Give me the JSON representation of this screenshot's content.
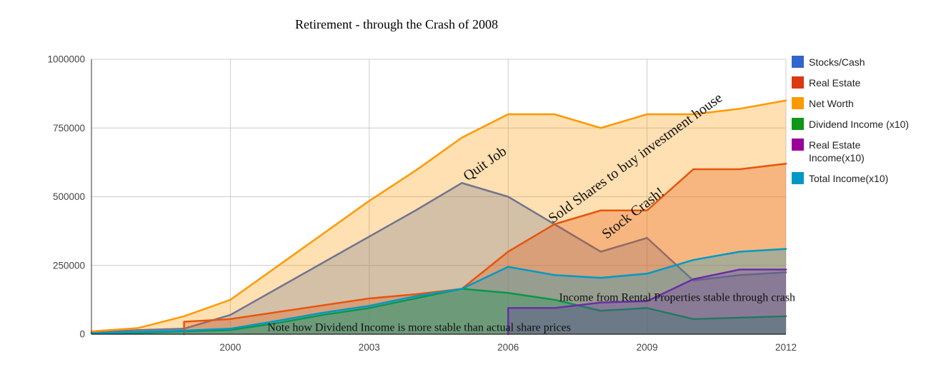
{
  "title": "Retirement - through the Crash of 2008",
  "legend": [
    {
      "label": "Stocks/Cash",
      "color": "#3366CC"
    },
    {
      "label": "Real Estate",
      "color": "#DC3912"
    },
    {
      "label": "Net Worth",
      "color": "#FF9900"
    },
    {
      "label": "Dividend Income (x10)",
      "color": "#109618"
    },
    {
      "label": "Real Estate Income(x10)",
      "lines": [
        "Real Estate",
        "Income(x10)"
      ],
      "color": "#990099"
    },
    {
      "label": "Total Income(x10)",
      "color": "#0099C6"
    }
  ],
  "chart_data": {
    "type": "area",
    "title": "Retirement - through the Crash of 2008",
    "xlabel": "",
    "ylabel": "",
    "x": [
      1997,
      1998,
      1999,
      2000,
      2001,
      2002,
      2003,
      2004,
      2005,
      2006,
      2007,
      2008,
      2009,
      2010,
      2011,
      2012
    ],
    "series": [
      {
        "name": "Stocks/Cash",
        "color": "#3366CC",
        "values": [
          5000,
          15000,
          20000,
          70000,
          165000,
          260000,
          355000,
          450000,
          550000,
          500000,
          400000,
          300000,
          350000,
          195000,
          215000,
          225000
        ]
      },
      {
        "name": "Real Estate",
        "color": "#DC3912",
        "values": [
          null,
          null,
          45000,
          55000,
          80000,
          105000,
          130000,
          145000,
          165000,
          300000,
          400000,
          450000,
          450000,
          600000,
          600000,
          620000
        ]
      },
      {
        "name": "Net Worth",
        "color": "#FF9900",
        "values": [
          10000,
          22000,
          65000,
          125000,
          245000,
          365000,
          485000,
          595000,
          715000,
          800000,
          800000,
          750000,
          800000,
          800000,
          820000,
          850000
        ]
      },
      {
        "name": "Dividend Income (x10)",
        "color": "#109618",
        "values": [
          2000,
          5000,
          10000,
          15000,
          40000,
          70000,
          95000,
          130000,
          165000,
          150000,
          125000,
          85000,
          95000,
          55000,
          60000,
          65000
        ]
      },
      {
        "name": "Real Estate Income(x10)",
        "color": "#990099",
        "values": [
          null,
          null,
          null,
          null,
          null,
          null,
          null,
          null,
          null,
          95000,
          95000,
          115000,
          120000,
          200000,
          235000,
          235000
        ]
      },
      {
        "name": "Total Income(x10)",
        "color": "#0099C6",
        "values": [
          3000,
          8000,
          13000,
          20000,
          48000,
          78000,
          103000,
          138000,
          165000,
          245000,
          215000,
          205000,
          220000,
          270000,
          300000,
          310000
        ]
      }
    ],
    "xlim": [
      1997,
      2012
    ],
    "ylim": [
      0,
      1000000
    ],
    "x_ticks": [
      2000,
      2003,
      2006,
      2009,
      2012
    ],
    "x_tick_labels": [
      "2000",
      "2003",
      "2006",
      "2009",
      "2012"
    ],
    "y_ticks": [
      0,
      250000,
      500000,
      750000,
      1000000
    ],
    "y_tick_labels": [
      "0",
      "250000",
      "500000",
      "750000",
      "1000000"
    ],
    "grid": true,
    "legend_position": "right",
    "area_opacity": 0.3,
    "background": "#FFFFFF",
    "grid_color": "#CCCCCC",
    "axis_color": "#333333",
    "tick_label_color": "#444444",
    "annotation_color": "#111111",
    "annotations": [
      {
        "text": "Quit Job",
        "x": 2005.5,
        "y": 620000,
        "rotate": -35,
        "size": 20,
        "anchor": "middle"
      },
      {
        "text": "Sold Shares to buy investment house",
        "x": 2008.75,
        "y": 640000,
        "rotate": -36,
        "size": 20,
        "anchor": "middle"
      },
      {
        "text": "Stock Crash!",
        "x": 2008.7,
        "y": 440000,
        "rotate": -38,
        "size": 20,
        "anchor": "middle"
      },
      {
        "text": "Note how Dividend Income is more stable than actual share prices",
        "x": 2000.8,
        "y": 24000,
        "rotate": 0,
        "size": 16,
        "anchor": "start"
      },
      {
        "text": "Income from Rental Properties stable through crash",
        "x": 2007.1,
        "y": 133000,
        "rotate": 0,
        "size": 16,
        "anchor": "start"
      }
    ]
  }
}
